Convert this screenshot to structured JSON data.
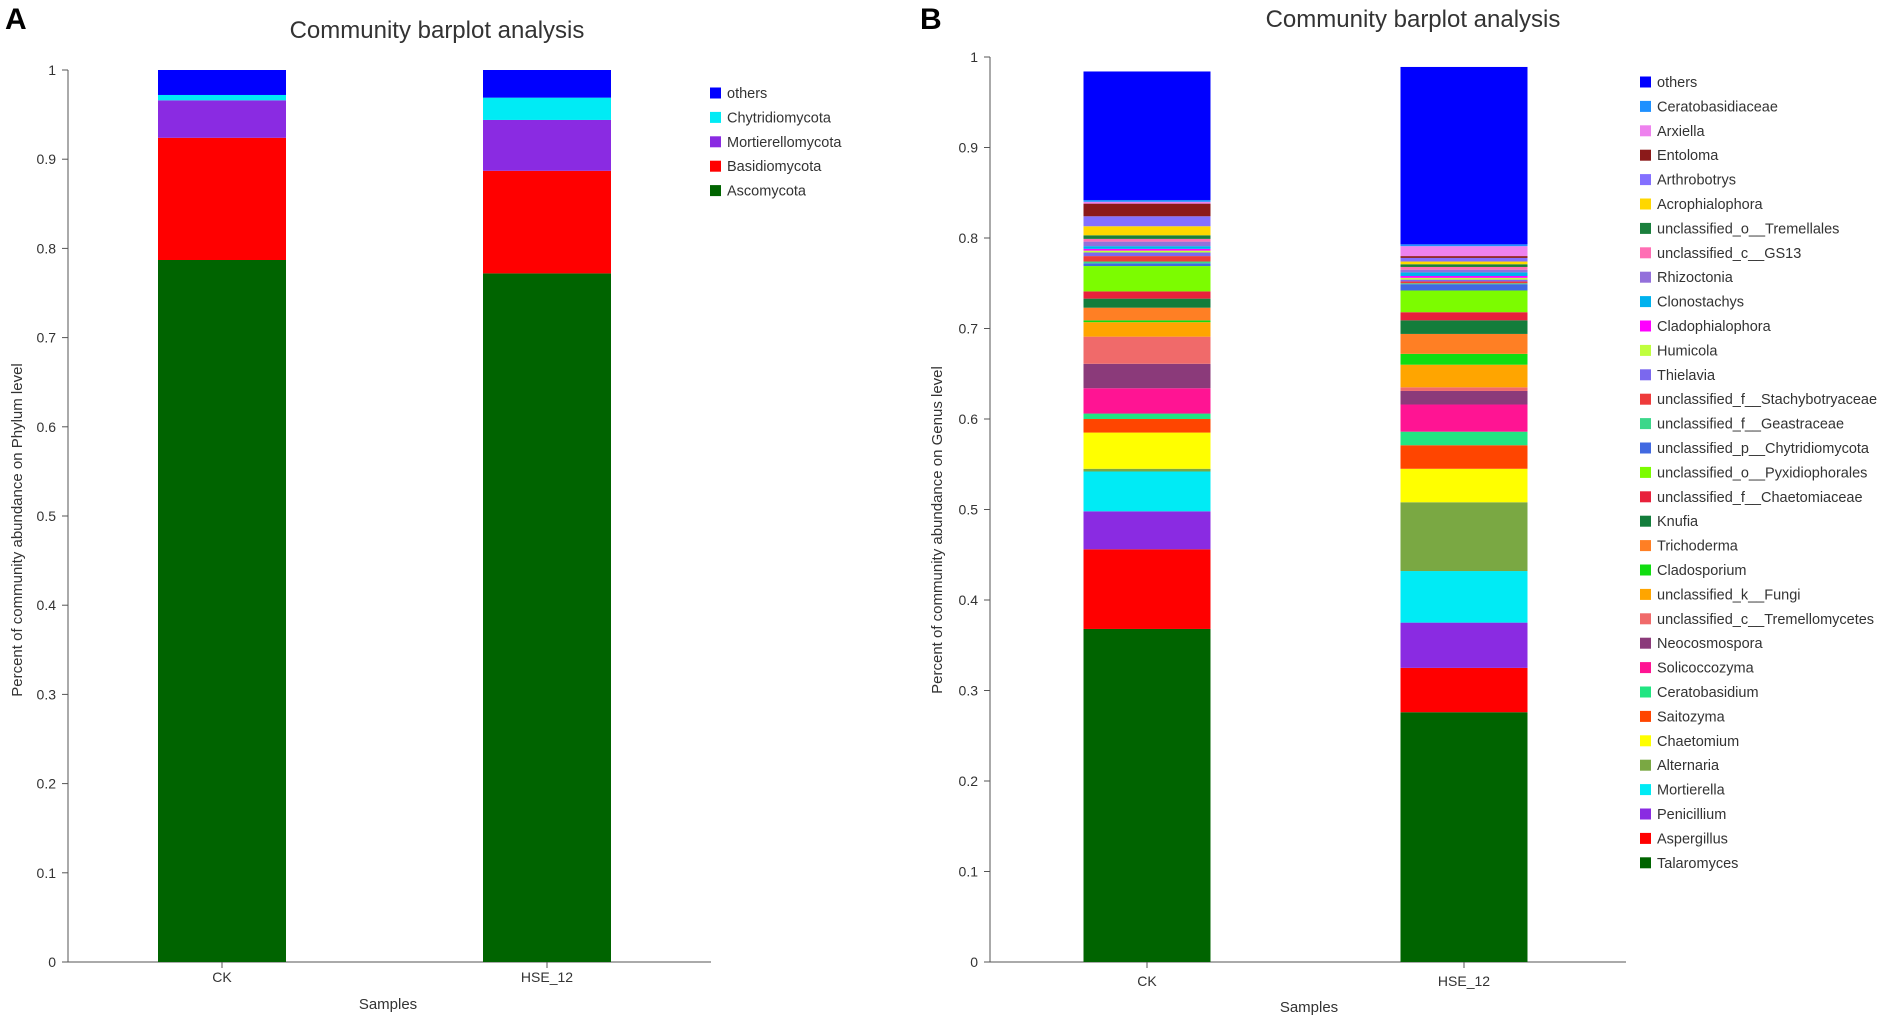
{
  "panels": [
    {
      "letter": "A"
    },
    {
      "letter": "B"
    }
  ],
  "chart_data": [
    {
      "type": "bar",
      "stacked": true,
      "title": "Community barplot analysis",
      "xlabel": "Samples",
      "ylabel": "Percent of community abundance on Phylum level",
      "ylim": [
        0,
        1
      ],
      "yticks": [
        "0",
        "0.1",
        "0.2",
        "0.3",
        "0.4",
        "0.5",
        "0.6",
        "0.7",
        "0.8",
        "0.9",
        "1"
      ],
      "legend_position": "top-right",
      "categories": [
        "CK",
        "HSE_12"
      ],
      "series": [
        {
          "name": "Ascomycota",
          "color": "#006400",
          "values": [
            0.787,
            0.772
          ]
        },
        {
          "name": "Basidiomycota",
          "color": "#ff0000",
          "values": [
            0.137,
            0.115
          ]
        },
        {
          "name": "Mortierellomycota",
          "color": "#8a2be2",
          "values": [
            0.042,
            0.057
          ]
        },
        {
          "name": "Chytridiomycota",
          "color": "#00ebf5",
          "values": [
            0.006,
            0.025
          ]
        },
        {
          "name": "others",
          "color": "#0000ff",
          "values": [
            0.028,
            0.031
          ]
        }
      ]
    },
    {
      "type": "bar",
      "stacked": true,
      "title": "Community barplot analysis",
      "xlabel": "Samples",
      "ylabel": "Percent of community abundance on Genus level",
      "ylim": [
        0,
        1
      ],
      "yticks": [
        "0",
        "0.1",
        "0.2",
        "0.3",
        "0.4",
        "0.5",
        "0.6",
        "0.7",
        "0.8",
        "0.9",
        "1"
      ],
      "legend_position": "top-right",
      "categories": [
        "CK",
        "HSE_12"
      ],
      "series": [
        {
          "name": "Talaromyces",
          "color": "#006400",
          "values": [
            0.368,
            0.276
          ]
        },
        {
          "name": "Aspergillus",
          "color": "#ff0000",
          "values": [
            0.088,
            0.049
          ]
        },
        {
          "name": "Penicillium",
          "color": "#8a2be2",
          "values": [
            0.042,
            0.05
          ]
        },
        {
          "name": "Mortierella",
          "color": "#00ebf5",
          "values": [
            0.044,
            0.057
          ]
        },
        {
          "name": "Alternaria",
          "color": "#7aa843",
          "values": [
            0.003,
            0.076
          ]
        },
        {
          "name": "Chaetomium",
          "color": "#ffff00",
          "values": [
            0.04,
            0.037
          ]
        },
        {
          "name": "Saitozyma",
          "color": "#ff4500",
          "values": [
            0.015,
            0.026
          ]
        },
        {
          "name": "Ceratobasidium",
          "color": "#21e582",
          "values": [
            0.006,
            0.015
          ]
        },
        {
          "name": "Solicoccozyma",
          "color": "#ff1493",
          "values": [
            0.028,
            0.03
          ]
        },
        {
          "name": "Neocosmospora",
          "color": "#8b3a7a",
          "values": [
            0.027,
            0.015
          ]
        },
        {
          "name": "unclassified_c__Tremellomycetes",
          "color": "#f06a6a",
          "values": [
            0.03,
            0.004
          ]
        },
        {
          "name": "unclassified_k__Fungi",
          "color": "#ffa500",
          "values": [
            0.016,
            0.025
          ]
        },
        {
          "name": "Cladosporium",
          "color": "#11dd11",
          "values": [
            0.002,
            0.012
          ]
        },
        {
          "name": "Trichoderma",
          "color": "#ff7f24",
          "values": [
            0.014,
            0.022
          ]
        },
        {
          "name": "Knufia",
          "color": "#137d3b",
          "values": [
            0.01,
            0.015
          ]
        },
        {
          "name": "unclassified_f__Chaetomiaceae",
          "color": "#e8213b",
          "values": [
            0.008,
            0.009
          ]
        },
        {
          "name": "unclassified_o__Pyxidiophorales",
          "color": "#7cfc00",
          "values": [
            0.028,
            0.024
          ]
        },
        {
          "name": "unclassified_p__Chytridiomycota",
          "color": "#4169e1",
          "values": [
            0.003,
            0.007
          ]
        },
        {
          "name": "unclassified_f__Geastraceae",
          "color": "#3cd78a",
          "values": [
            0.002,
            0.001
          ]
        },
        {
          "name": "unclassified_f__Stachybotryaceae",
          "color": "#ee3b3b",
          "values": [
            0.006,
            0.002
          ]
        },
        {
          "name": "Thielavia",
          "color": "#7b68ee",
          "values": [
            0.004,
            0.002
          ]
        },
        {
          "name": "Humicola",
          "color": "#c0ff3e",
          "values": [
            0.002,
            0.002
          ]
        },
        {
          "name": "Cladophialophora",
          "color": "#ff00ff",
          "values": [
            0.002,
            0.002
          ]
        },
        {
          "name": "Clonostachys",
          "color": "#00b2ee",
          "values": [
            0.003,
            0.004
          ]
        },
        {
          "name": "Rhizoctonia",
          "color": "#9370db",
          "values": [
            0.005,
            0.003
          ]
        },
        {
          "name": "unclassified_c__GS13",
          "color": "#ff6eb4",
          "values": [
            0.003,
            0.003
          ]
        },
        {
          "name": "unclassified_o__Tremellales",
          "color": "#1a7f3c",
          "values": [
            0.004,
            0.003
          ]
        },
        {
          "name": "Acrophialophora",
          "color": "#ffd700",
          "values": [
            0.01,
            0.003
          ]
        },
        {
          "name": "Arthrobotrys",
          "color": "#8470ff",
          "values": [
            0.011,
            0.004
          ]
        },
        {
          "name": "Entoloma",
          "color": "#8b1a1a",
          "values": [
            0.014,
            0.002
          ]
        },
        {
          "name": "Arxiella",
          "color": "#ee82ee",
          "values": [
            0.002,
            0.011
          ]
        },
        {
          "name": "Ceratobasidiaceae",
          "color": "#1e90ff",
          "values": [
            0.002,
            0.002
          ]
        },
        {
          "name": "others",
          "color": "#0000ff",
          "values": [
            0.142,
            0.196
          ]
        }
      ]
    }
  ]
}
